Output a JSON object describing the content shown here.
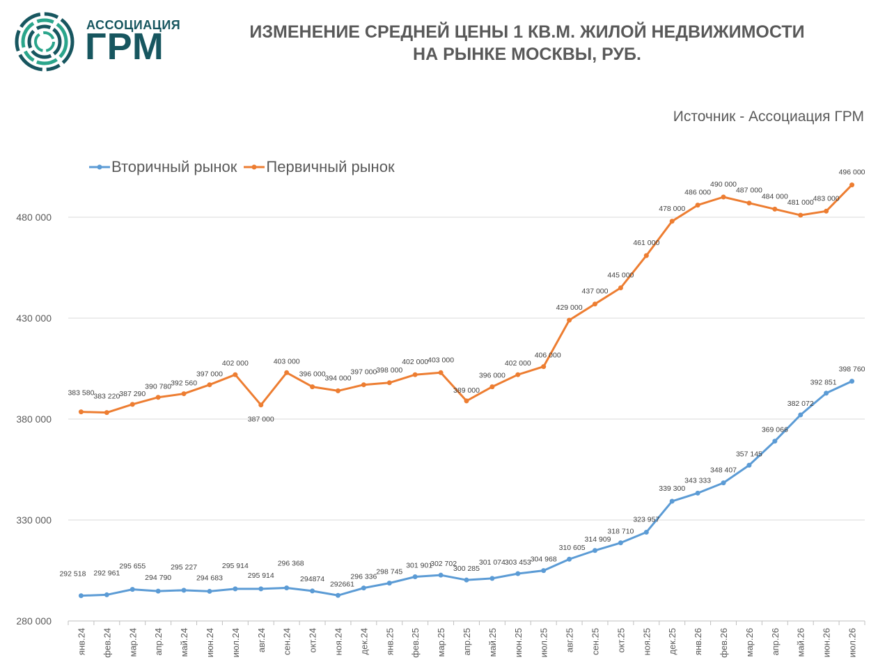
{
  "logo": {
    "top_text": "АССОЦИАЦИЯ",
    "big_text": "ГРМ",
    "colors": {
      "dark": "#17565f",
      "accent": "#2aa58b"
    }
  },
  "header": {
    "title_line1": "ИЗМЕНЕНИЕ СРЕДНЕЙ ЦЕНЫ 1 КВ.М. ЖИЛОЙ НЕДВИЖИМОСТИ",
    "title_line2": "НА РЫНКЕ МОСКВЫ, РУБ.",
    "source": "Источник - Ассоциация ГРМ"
  },
  "chart_data": {
    "type": "line",
    "title": "ИЗМЕНЕНИЕ СРЕДНЕЙ ЦЕНЫ 1 КВ.М. ЖИЛОЙ НЕДВИЖИМОСТИ НА РЫНКЕ МОСКВЫ, РУБ.",
    "xlabel": "",
    "ylabel": "",
    "ylim": [
      280000,
      500000
    ],
    "yticks": [
      280000,
      330000,
      380000,
      430000,
      480000
    ],
    "ytick_labels": [
      "280 000",
      "330 000",
      "380 000",
      "430 000",
      "480 000"
    ],
    "grid": true,
    "legend": "top-left",
    "categories": [
      "янв.24",
      "фев.24",
      "мар.24",
      "апр.24",
      "май.24",
      "июн.24",
      "июл.24",
      "авг.24",
      "сен.24",
      "окт.24",
      "ноя.24",
      "дек.24",
      "янв.25",
      "фев.25",
      "мар.25",
      "апр.25",
      "май.25",
      "июн.25",
      "июл.25",
      "авг.25",
      "сен.25",
      "окт.25",
      "ноя.25",
      "дек.25",
      "янв.26",
      "фев.26",
      "мар.26",
      "апр.26",
      "май.26",
      "июн.26",
      "июл.26"
    ],
    "series": [
      {
        "name": "Вторичный рынок",
        "color": "#5b9bd5",
        "values": [
          292518,
          292961,
          295655,
          294790,
          295227,
          294683,
          295914,
          295914,
          296368,
          294874,
          292661,
          296336,
          298745,
          301901,
          302702,
          300285,
          301074,
          303453,
          304968,
          310605,
          314909,
          318710,
          323957,
          339300,
          343333,
          348407,
          357145,
          369066,
          382072,
          392851,
          398760
        ],
        "labels": [
          "292 518",
          "292 961",
          "295 655",
          "294 790",
          "295 227",
          "294 683",
          "295 914",
          "295 914",
          "296 368",
          "294874",
          "292661",
          "296 336",
          "298 745",
          "301 901",
          "302 702",
          "300 285",
          "301 074",
          "303 453",
          "304 968",
          "310 605",
          "314 909",
          "318 710",
          "323 957",
          "339 300",
          "343 333",
          "348 407",
          "357 145",
          "369 066",
          "382 072",
          "392 851",
          "398 760"
        ]
      },
      {
        "name": "Первичный рынок",
        "color": "#ed7d31",
        "values": [
          383580,
          383220,
          387290,
          390780,
          392560,
          397000,
          402000,
          387000,
          403000,
          396000,
          394000,
          397000,
          398000,
          402000,
          403000,
          389000,
          396000,
          402000,
          406000,
          429000,
          437000,
          445000,
          461000,
          478000,
          486000,
          490000,
          487000,
          484000,
          481000,
          483000,
          496000
        ],
        "labels": [
          "383 580",
          "383 220",
          "387 290",
          "390 780",
          "392 560",
          "397 000",
          "402 000",
          "387 000",
          "403 000",
          "396 000",
          "394 000",
          "397 000",
          "398 000",
          "402 000",
          "403 000",
          "389 000",
          "396 000",
          "402 000",
          "406 000",
          "429 000",
          "437 000",
          "445 000",
          "461 000",
          "478 000",
          "486 000",
          "490 000",
          "487 000",
          "484 000",
          "481 000",
          "483 000",
          "496 000"
        ]
      }
    ]
  }
}
